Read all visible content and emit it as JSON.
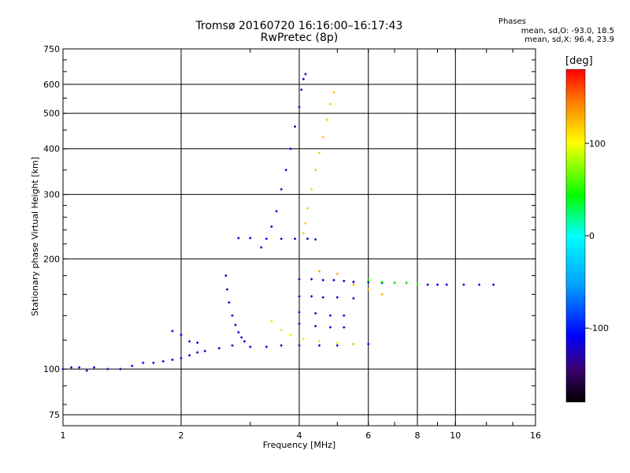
{
  "chart_data": {
    "type": "scatter",
    "title": "Tromsø 20160720 16:16:00–16:17:43",
    "subtitle": "RwPretec (8p)",
    "xlabel": "Frequency [MHz]",
    "ylabel": "Stationary phase Virtual Height [km]",
    "x_scale": "log",
    "y_scale": "log",
    "xlim": [
      1,
      16
    ],
    "ylim": [
      70,
      750
    ],
    "x_ticks": [
      1,
      2,
      4,
      6,
      8,
      10,
      16
    ],
    "y_ticks": [
      75,
      100,
      200,
      300,
      400,
      500,
      600,
      750
    ],
    "grid": true,
    "stats": {
      "title": "Phases",
      "o_mode": "mean, sd,O: -93.0, 18.5",
      "x_mode": "mean, sd,X:  96.4, 23.9"
    },
    "colorbar": {
      "label": "[deg]",
      "range": [
        -180,
        180
      ],
      "ticks": [
        100,
        0,
        -100
      ],
      "colors": [
        "#000000",
        "#3b0070",
        "#0000ff",
        "#00a0ff",
        "#00ffff",
        "#00ff00",
        "#ffff00",
        "#ff8000",
        "#ff0000"
      ]
    },
    "series": [
      {
        "phase": -100,
        "points": [
          [
            1.0,
            100
          ],
          [
            1.05,
            101
          ],
          [
            1.1,
            101
          ],
          [
            1.15,
            99
          ],
          [
            1.2,
            101
          ],
          [
            1.3,
            100
          ],
          [
            1.4,
            100
          ],
          [
            1.5,
            102
          ],
          [
            1.6,
            104
          ],
          [
            1.7,
            104
          ],
          [
            1.8,
            105
          ],
          [
            1.9,
            106
          ],
          [
            2.0,
            107
          ],
          [
            2.1,
            109
          ],
          [
            2.2,
            111
          ],
          [
            2.3,
            112
          ],
          [
            2.5,
            114
          ],
          [
            2.7,
            116
          ],
          [
            3.0,
            115
          ],
          [
            3.3,
            115
          ],
          [
            3.6,
            116
          ],
          [
            4.0,
            116
          ],
          [
            4.5,
            116
          ],
          [
            5.0,
            116
          ],
          [
            5.5,
            117
          ],
          [
            6.0,
            117
          ]
        ]
      },
      {
        "phase": -100,
        "points": [
          [
            1.9,
            127
          ],
          [
            2.0,
            124
          ],
          [
            2.1,
            119
          ],
          [
            2.2,
            118
          ]
        ]
      },
      {
        "phase": -100,
        "points": [
          [
            2.6,
            180
          ],
          [
            2.62,
            165
          ],
          [
            2.65,
            152
          ],
          [
            2.7,
            140
          ],
          [
            2.75,
            132
          ],
          [
            2.8,
            126
          ],
          [
            2.85,
            122
          ],
          [
            2.9,
            119
          ]
        ]
      },
      {
        "phase": -100,
        "points": [
          [
            3.2,
            215
          ],
          [
            3.4,
            245
          ],
          [
            3.5,
            270
          ],
          [
            3.6,
            310
          ],
          [
            3.7,
            350
          ],
          [
            3.8,
            400
          ],
          [
            3.9,
            460
          ],
          [
            4.0,
            520
          ],
          [
            4.05,
            580
          ],
          [
            4.1,
            620
          ],
          [
            4.15,
            640
          ]
        ]
      },
      {
        "phase": -100,
        "points": [
          [
            2.8,
            228
          ],
          [
            3.0,
            228
          ],
          [
            3.3,
            227
          ],
          [
            3.6,
            227
          ],
          [
            3.9,
            227
          ],
          [
            4.2,
            227
          ],
          [
            4.4,
            226
          ]
        ]
      },
      {
        "phase": -100,
        "points": [
          [
            4.0,
            176
          ],
          [
            4.3,
            176
          ],
          [
            4.6,
            175
          ],
          [
            4.9,
            175
          ],
          [
            5.2,
            174
          ],
          [
            5.5,
            173
          ],
          [
            6.0,
            173
          ],
          [
            6.5,
            172
          ],
          [
            7.0,
            172
          ],
          [
            7.5,
            172
          ]
        ]
      },
      {
        "phase": -100,
        "points": [
          [
            4.0,
            158
          ],
          [
            4.3,
            158
          ],
          [
            4.6,
            157
          ],
          [
            5.0,
            157
          ],
          [
            5.5,
            156
          ]
        ]
      },
      {
        "phase": -100,
        "points": [
          [
            4.0,
            143
          ],
          [
            4.4,
            142
          ],
          [
            4.8,
            140
          ],
          [
            5.2,
            140
          ]
        ]
      },
      {
        "phase": -100,
        "points": [
          [
            4.0,
            133
          ],
          [
            4.4,
            131
          ],
          [
            4.8,
            130
          ],
          [
            5.2,
            130
          ]
        ]
      },
      {
        "phase": -100,
        "points": [
          [
            8.5,
            170
          ],
          [
            9.0,
            170
          ],
          [
            9.5,
            170
          ],
          [
            10.5,
            170
          ],
          [
            11.5,
            170
          ],
          [
            12.5,
            170
          ]
        ]
      },
      {
        "phase": 110,
        "points": [
          [
            4.1,
            235
          ],
          [
            4.15,
            250
          ],
          [
            4.2,
            275
          ],
          [
            4.3,
            310
          ],
          [
            4.4,
            350
          ],
          [
            4.5,
            390
          ],
          [
            4.6,
            430
          ],
          [
            4.7,
            480
          ],
          [
            4.8,
            530
          ],
          [
            4.9,
            570
          ]
        ]
      },
      {
        "phase": 80,
        "points": [
          [
            3.4,
            135
          ],
          [
            3.6,
            128
          ],
          [
            3.8,
            124
          ],
          [
            4.1,
            121
          ],
          [
            4.5,
            119
          ],
          [
            5.0,
            118
          ],
          [
            5.5,
            117
          ]
        ]
      },
      {
        "phase": 120,
        "points": [
          [
            4.5,
            185
          ],
          [
            5.0,
            182
          ],
          [
            5.5,
            170
          ],
          [
            6.0,
            165
          ],
          [
            6.5,
            160
          ]
        ]
      },
      {
        "phase": 50,
        "points": [
          [
            6.0,
            175
          ],
          [
            6.5,
            173
          ],
          [
            7.0,
            172
          ],
          [
            7.5,
            172
          ],
          [
            8.0,
            170
          ]
        ]
      }
    ]
  }
}
